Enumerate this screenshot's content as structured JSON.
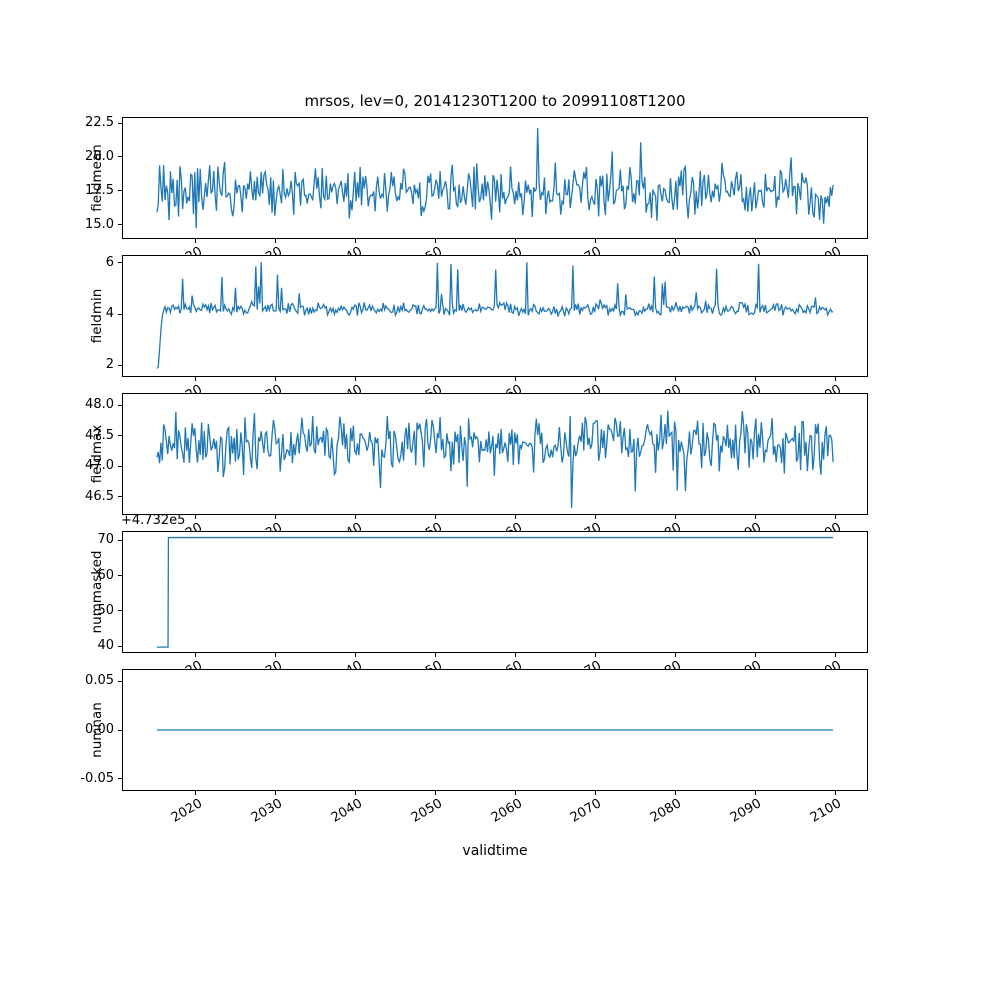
{
  "figure": {
    "title": "mrsos, lev=0, 20141230T1200 to 20991108T1200",
    "xlabel": "validtime",
    "line_color": "#1f77b4",
    "background": "#ffffff"
  },
  "x": {
    "lim": [
      2010.75,
      2104.1
    ],
    "data_start": 2015.0,
    "data_end": 2099.85,
    "ticks": [
      {
        "v": 2020,
        "label": "2020"
      },
      {
        "v": 2030,
        "label": "2030"
      },
      {
        "v": 2040,
        "label": "2040"
      },
      {
        "v": 2050,
        "label": "2050"
      },
      {
        "v": 2060,
        "label": "2060"
      },
      {
        "v": 2070,
        "label": "2070"
      },
      {
        "v": 2080,
        "label": "2080"
      },
      {
        "v": 2090,
        "label": "2090"
      },
      {
        "v": 2100,
        "label": "2100"
      }
    ]
  },
  "chart_data": [
    {
      "name": "fieldmean",
      "type": "line",
      "ylabel": "fieldmean",
      "ylim": [
        13.95,
        22.95
      ],
      "yticks": [
        {
          "v": 15.0,
          "label": "15.0"
        },
        {
          "v": 17.5,
          "label": "17.5"
        },
        {
          "v": 20.0,
          "label": "20.0"
        },
        {
          "v": 22.5,
          "label": "22.5"
        }
      ],
      "summary": "Dense noisy series oscillating around 17.5, mostly 15-20, extremes ~14.3 and ~22.5",
      "series": {
        "kind": "noise",
        "seed": 42,
        "n": 500,
        "x_start": 2015.0,
        "x_end": 2099.85,
        "base": 17.4,
        "amp": 2.3,
        "spike_prob": 0.08,
        "spike_amp": 2.8,
        "spike_sign": 0,
        "clamp": [
          14.3,
          22.5
        ]
      }
    },
    {
      "name": "fieldmin",
      "type": "line",
      "ylabel": "fieldmin",
      "ylim": [
        1.55,
        6.3
      ],
      "yticks": [
        {
          "v": 2,
          "label": "2"
        },
        {
          "v": 4,
          "label": "4"
        },
        {
          "v": 6,
          "label": "6"
        }
      ],
      "summary": "Starts near 1.85 in 2015, ramps quickly to a plateau ~4.2 with frequent upward spikes reaching 5-6",
      "series": {
        "kind": "noise",
        "seed": 7,
        "n": 500,
        "x_start": 2015.0,
        "x_end": 2099.85,
        "base": 4.2,
        "amp": 0.3,
        "spike_prob": 0.06,
        "spike_amp": 1.9,
        "spike_sign": 1,
        "clamp": [
          3.85,
          6.05
        ],
        "start_ramp": [
          1.85,
          1.9,
          2.6,
          3.4,
          3.9,
          4.15
        ]
      }
    },
    {
      "name": "fieldmax",
      "type": "line",
      "ylabel": "fieldmax",
      "ylim": [
        46.2,
        48.2
      ],
      "yticks": [
        {
          "v": 46.5,
          "label": "46.5"
        },
        {
          "v": 47.0,
          "label": "47.0"
        },
        {
          "v": 47.5,
          "label": "47.5"
        },
        {
          "v": 48.0,
          "label": "48.0"
        }
      ],
      "summary": "Dense noisy series around 47.4, mostly 47.0-47.8, occasional dips to ~46.3 and peaks ~48.1",
      "series": {
        "kind": "noise",
        "seed": 99,
        "n": 500,
        "x_start": 2015.0,
        "x_end": 2099.85,
        "base": 47.4,
        "amp": 0.55,
        "spike_prob": 0.05,
        "spike_amp": 1.0,
        "spike_sign": -1,
        "clamp": [
          46.3,
          48.1
        ]
      }
    },
    {
      "name": "nummasked",
      "type": "line",
      "ylabel": "nummasked",
      "offset_text": "+4.732e5",
      "ylim": [
        473238.1,
        473272.6
      ],
      "yticks": [
        {
          "v": 473240,
          "label": "40"
        },
        {
          "v": 473250,
          "label": "50"
        },
        {
          "v": 473260,
          "label": "60"
        },
        {
          "v": 473270,
          "label": "70"
        }
      ],
      "summary": "Step function: ~473239.5 briefly at start (2015-2016.4) then constant 473271 through 2099",
      "series": {
        "kind": "points",
        "points": [
          [
            2015.0,
            473239.5
          ],
          [
            2016.4,
            473239.5
          ],
          [
            2016.45,
            473271.0
          ],
          [
            2099.85,
            473271.0
          ]
        ]
      }
    },
    {
      "name": "numnan",
      "type": "line",
      "ylabel": "numnan",
      "ylim": [
        -0.0625,
        0.0625
      ],
      "yticks": [
        {
          "v": 0.05,
          "label": "0.05"
        },
        {
          "v": 0.0,
          "label": "0.00"
        },
        {
          "v": -0.05,
          "label": "-0.05"
        }
      ],
      "summary": "Constant zero for the whole period",
      "series": {
        "kind": "points",
        "points": [
          [
            2015.0,
            0.0
          ],
          [
            2099.85,
            0.0
          ]
        ]
      }
    }
  ]
}
